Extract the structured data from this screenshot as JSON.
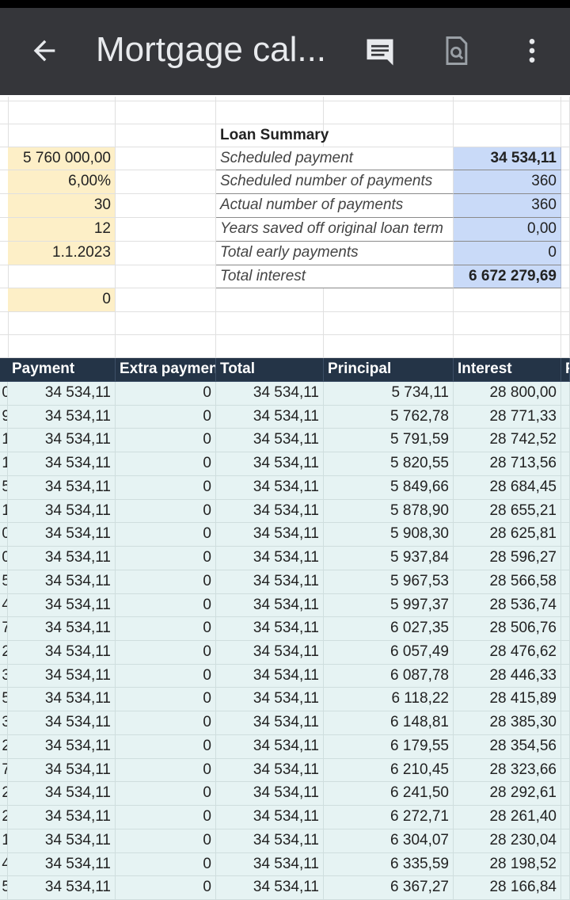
{
  "app_bar": {
    "title": "Mortgage cal..."
  },
  "inputs": {
    "values": [
      "5 760 000,00",
      "6,00%",
      "30",
      "12",
      "1.1.2023"
    ],
    "extra": "0"
  },
  "summary": {
    "title": "Loan Summary",
    "rows": [
      {
        "label": "Scheduled payment",
        "value": "34 534,11"
      },
      {
        "label": "Scheduled number of payments",
        "value": "360"
      },
      {
        "label": "Actual number of payments",
        "value": "360"
      },
      {
        "label": "Years saved off original loan term",
        "value": "0,00"
      },
      {
        "label": "Total early payments",
        "value": "0"
      },
      {
        "label": "Total interest",
        "value": "6 672 279,69"
      }
    ]
  },
  "schedule": {
    "header": [
      "Payment",
      "Extra paymen",
      "Total",
      "Principal",
      "Interest",
      "P"
    ],
    "left_edge": [
      "0",
      "9",
      "1",
      "1",
      "5",
      "1",
      "0",
      "0",
      "5",
      "4",
      "7",
      "2",
      "3",
      "5",
      "3",
      "2",
      "7",
      "2",
      "2",
      "1",
      "4",
      "5"
    ],
    "rows": [
      [
        "34 534,11",
        "0",
        "34 534,11",
        "5 734,11",
        "28 800,00"
      ],
      [
        "34 534,11",
        "0",
        "34 534,11",
        "5 762,78",
        "28 771,33"
      ],
      [
        "34 534,11",
        "0",
        "34 534,11",
        "5 791,59",
        "28 742,52"
      ],
      [
        "34 534,11",
        "0",
        "34 534,11",
        "5 820,55",
        "28 713,56"
      ],
      [
        "34 534,11",
        "0",
        "34 534,11",
        "5 849,66",
        "28 684,45"
      ],
      [
        "34 534,11",
        "0",
        "34 534,11",
        "5 878,90",
        "28 655,21"
      ],
      [
        "34 534,11",
        "0",
        "34 534,11",
        "5 908,30",
        "28 625,81"
      ],
      [
        "34 534,11",
        "0",
        "34 534,11",
        "5 937,84",
        "28 596,27"
      ],
      [
        "34 534,11",
        "0",
        "34 534,11",
        "5 967,53",
        "28 566,58"
      ],
      [
        "34 534,11",
        "0",
        "34 534,11",
        "5 997,37",
        "28 536,74"
      ],
      [
        "34 534,11",
        "0",
        "34 534,11",
        "6 027,35",
        "28 506,76"
      ],
      [
        "34 534,11",
        "0",
        "34 534,11",
        "6 057,49",
        "28 476,62"
      ],
      [
        "34 534,11",
        "0",
        "34 534,11",
        "6 087,78",
        "28 446,33"
      ],
      [
        "34 534,11",
        "0",
        "34 534,11",
        "6 118,22",
        "28 415,89"
      ],
      [
        "34 534,11",
        "0",
        "34 534,11",
        "6 148,81",
        "28 385,30"
      ],
      [
        "34 534,11",
        "0",
        "34 534,11",
        "6 179,55",
        "28 354,56"
      ],
      [
        "34 534,11",
        "0",
        "34 534,11",
        "6 210,45",
        "28 323,66"
      ],
      [
        "34 534,11",
        "0",
        "34 534,11",
        "6 241,50",
        "28 292,61"
      ],
      [
        "34 534,11",
        "0",
        "34 534,11",
        "6 272,71",
        "28 261,40"
      ],
      [
        "34 534,11",
        "0",
        "34 534,11",
        "6 304,07",
        "28 230,04"
      ],
      [
        "34 534,11",
        "0",
        "34 534,11",
        "6 335,59",
        "28 198,52"
      ],
      [
        "34 534,11",
        "0",
        "34 534,11",
        "6 367,27",
        "28 166,84"
      ]
    ]
  }
}
